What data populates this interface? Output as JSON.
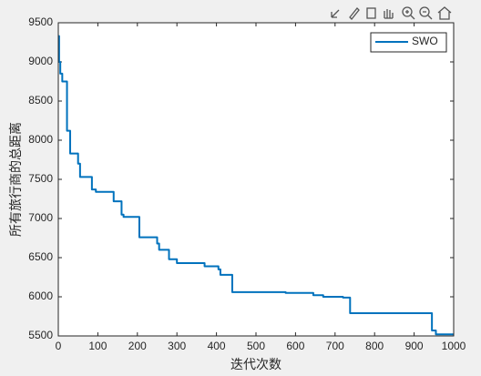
{
  "chart_data": {
    "type": "line",
    "xlabel": "迭代次数",
    "ylabel": "所有旅行商的总距离",
    "x": [
      0,
      2,
      2,
      5,
      5,
      10,
      10,
      22,
      22,
      30,
      30,
      50,
      50,
      55,
      55,
      85,
      85,
      95,
      95,
      140,
      140,
      160,
      160,
      165,
      165,
      205,
      205,
      250,
      250,
      255,
      255,
      280,
      280,
      300,
      300,
      370,
      370,
      405,
      405,
      410,
      410,
      440,
      440,
      575,
      575,
      645,
      645,
      670,
      670,
      720,
      720,
      738,
      738,
      945,
      945,
      955,
      955,
      1000
    ],
    "series": [
      {
        "name": "SWO",
        "color": "#0072bd",
        "values": [
          9330,
          9330,
          9000,
          9000,
          8850,
          8850,
          8750,
          8750,
          8120,
          8120,
          7830,
          7830,
          7700,
          7700,
          7530,
          7530,
          7370,
          7370,
          7340,
          7340,
          7220,
          7220,
          7050,
          7050,
          7020,
          7020,
          6760,
          6760,
          6680,
          6680,
          6600,
          6600,
          6480,
          6480,
          6430,
          6430,
          6390,
          6390,
          6350,
          6350,
          6280,
          6280,
          6060,
          6060,
          6050,
          6050,
          6020,
          6020,
          6000,
          6000,
          5990,
          5990,
          5790,
          5790,
          5570,
          5570,
          5520,
          5520
        ]
      }
    ],
    "xlim": [
      0,
      1000
    ],
    "ylim": [
      5500,
      9500
    ],
    "xticks": [
      0,
      100,
      200,
      300,
      400,
      500,
      600,
      700,
      800,
      900,
      1000
    ],
    "yticks": [
      5500,
      6000,
      6500,
      7000,
      7500,
      8000,
      8500,
      9000,
      9500
    ],
    "legend": "upper right"
  }
}
